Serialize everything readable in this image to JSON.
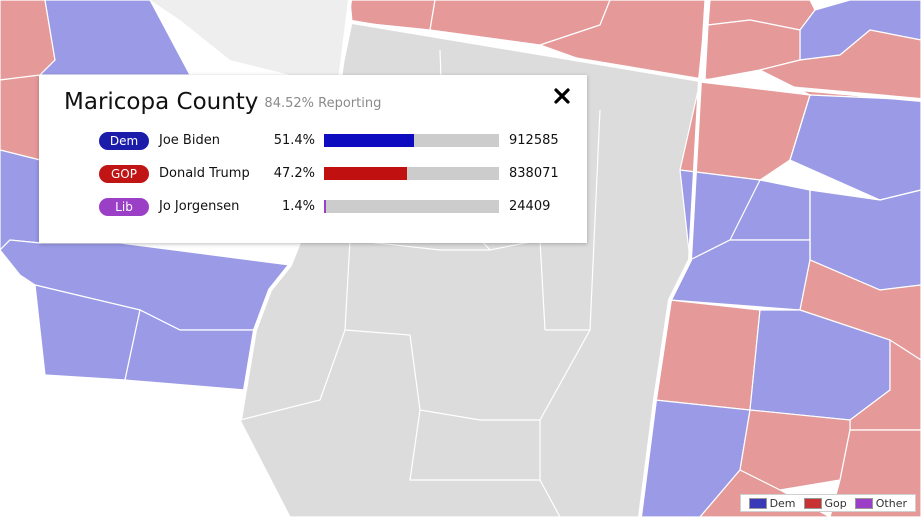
{
  "colors": {
    "dem": "#9a9ae6",
    "gop": "#e59999",
    "neutral": "#dcdcdc",
    "water": "#f0f0f0",
    "dem_badge": "#1c1cab",
    "gop_badge": "#c11414",
    "lib_badge": "#9b3fc6",
    "dem_bar": "#0d0dbf",
    "gop_bar": "#c01010",
    "lib_bar": "#9b3fc6"
  },
  "popup": {
    "county": "Maricopa County",
    "reporting": "84.52% Reporting",
    "close_icon": "close-x-icon",
    "results": [
      {
        "party": "Dem",
        "candidate": "Joe Biden",
        "pct": "51.4%",
        "share": 51.4,
        "votes": "912585",
        "color_key": "dem"
      },
      {
        "party": "GOP",
        "candidate": "Donald Trump",
        "pct": "47.2%",
        "share": 47.2,
        "votes": "838071",
        "color_key": "gop"
      },
      {
        "party": "Lib",
        "candidate": "Jo Jorgensen",
        "pct": "1.4%",
        "share": 1.4,
        "votes": "24409",
        "color_key": "lib"
      }
    ]
  },
  "legend": [
    {
      "label": "Dem",
      "color": "#3a3ab8"
    },
    {
      "label": "Gop",
      "color": "#c93232"
    },
    {
      "label": "Other",
      "color": "#9b3fc6"
    }
  ]
}
